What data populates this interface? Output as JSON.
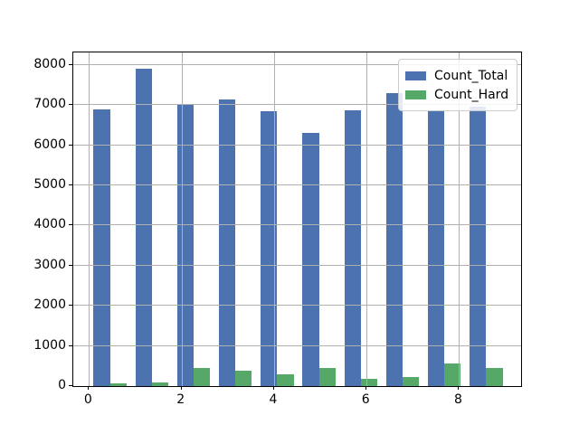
{
  "chart_data": {
    "type": "bar",
    "title": "",
    "xlabel": "",
    "ylabel": "",
    "categories": [
      0,
      1,
      2,
      3,
      4,
      5,
      6,
      7,
      8,
      9
    ],
    "series": [
      {
        "name": "Count_Total",
        "color": "#4C72B0",
        "values": [
          6900,
          7900,
          7000,
          7150,
          6840,
          6320,
          6870,
          7300,
          6840,
          6960
        ]
      },
      {
        "name": "Count_Hard",
        "color": "#55A868",
        "values": [
          70,
          95,
          440,
          390,
          285,
          460,
          185,
          230,
          570,
          440
        ]
      }
    ],
    "ylim": [
      0,
      8315
    ],
    "xlim": [
      -0.34,
      9.34
    ],
    "yticks": [
      0,
      1000,
      2000,
      3000,
      4000,
      5000,
      6000,
      7000,
      8000
    ],
    "xticks": [
      0,
      2,
      4,
      6,
      8
    ],
    "grid": true,
    "grid_over_bars": true,
    "legend_position": "upper right"
  },
  "axes": {
    "y_tick_labels": [
      "0",
      "1000",
      "2000",
      "3000",
      "4000",
      "5000",
      "6000",
      "7000",
      "8000"
    ],
    "x_tick_labels": [
      "0",
      "2",
      "4",
      "6",
      "8"
    ]
  },
  "legend": {
    "items": [
      {
        "label": "Count_Total",
        "color": "#4C72B0"
      },
      {
        "label": "Count_Hard",
        "color": "#55A868"
      }
    ]
  },
  "colors": {
    "background": "#ffffff",
    "grid": "#b0b0b0",
    "spine": "#000000",
    "text": "#000000",
    "blue_series": "#4C72B0",
    "green_series": "#55A868"
  }
}
